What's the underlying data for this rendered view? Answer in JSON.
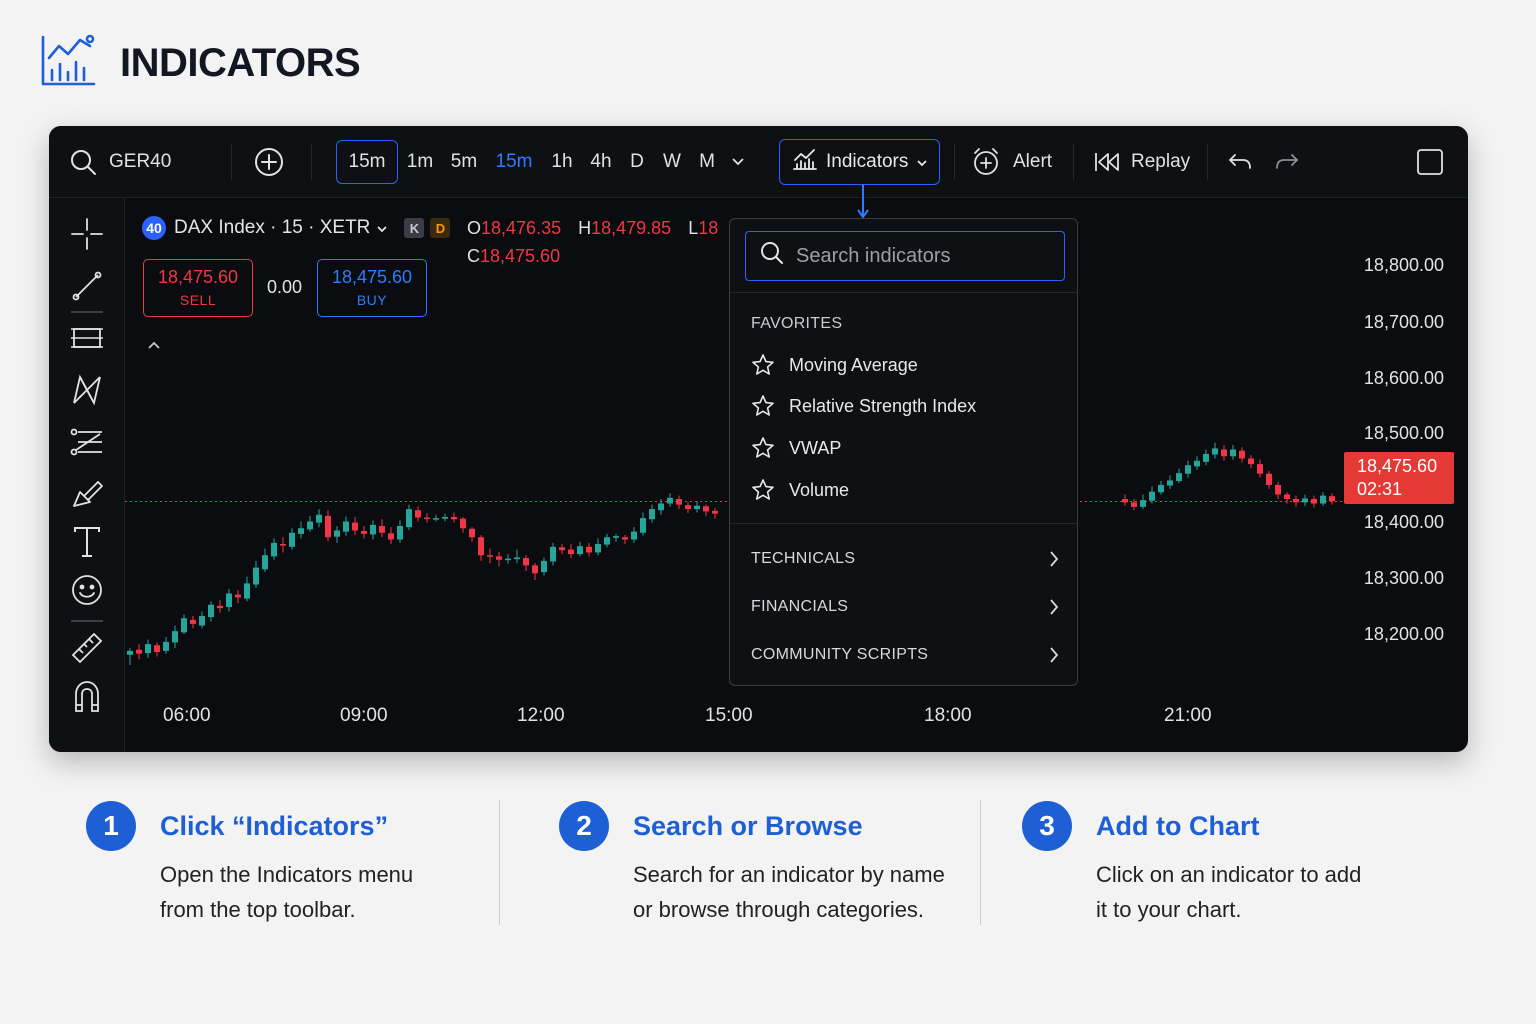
{
  "page": {
    "title": "INDICATORS"
  },
  "toolbar": {
    "symbol": "GER40",
    "timeframes": [
      {
        "label": "15m",
        "style": "boxed"
      },
      {
        "label": "1m",
        "style": "plain"
      },
      {
        "label": "5m",
        "style": "plain"
      },
      {
        "label": "15m",
        "style": "blue"
      },
      {
        "label": "1h",
        "style": "plain"
      },
      {
        "label": "4h",
        "style": "plain"
      },
      {
        "label": "D",
        "style": "plain"
      },
      {
        "label": "W",
        "style": "plain"
      },
      {
        "label": "M",
        "style": "plain"
      }
    ],
    "indicators_label": "Indicators",
    "alert_label": "Alert",
    "replay_label": "Replay"
  },
  "legend": {
    "badge": "40",
    "title": "DAX Index · 15 · XETR",
    "badge_k": "K",
    "badge_d": "D",
    "open_key": "O",
    "open": "18,476.35",
    "high_key": "H",
    "high": "18,479.85",
    "low_key": "L",
    "low": "18",
    "close_key": "C",
    "close": "18,475.60"
  },
  "trade": {
    "sell_price": "18,475.60",
    "sell_label": "SELL",
    "spread": "0.00",
    "buy_price": "18,475.60",
    "buy_label": "BUY"
  },
  "price_axis": {
    "labels": [
      "18,800.00",
      "18,700.00",
      "18,600.00",
      "18,500.00",
      "18,400.00",
      "18,300.00",
      "18,200.00"
    ],
    "current_price": "18,475.60",
    "countdown": "02:31"
  },
  "time_axis": {
    "labels": [
      "06:00",
      "09:00",
      "12:00",
      "15:00",
      "18:00",
      "21:00"
    ]
  },
  "dropdown": {
    "search_placeholder": "Search indicators",
    "favorites_heading": "FAVORITES",
    "favorites": [
      "Moving Average",
      "Relative Strength Index",
      "VWAP",
      "Volume"
    ],
    "categories": [
      "TECHNICALS",
      "FINANCIALS",
      "COMMUNITY SCRIPTS"
    ]
  },
  "steps": [
    {
      "num": "1",
      "title": "Click “Indicators”",
      "line1": "Open the Indicators menu",
      "line2": "from the top toolbar."
    },
    {
      "num": "2",
      "title": "Search or Browse",
      "line1": "Search for an indicator by name",
      "line2": "or browse through categories."
    },
    {
      "num": "3",
      "title": "Add to Chart",
      "line1": "Click on an indicator to add",
      "line2": "it to your chart."
    }
  ],
  "colors": {
    "accent": "#2962ff",
    "up": "#26a69a",
    "down": "#f23645",
    "step_blue": "#1f5fd6"
  },
  "chart_data": {
    "type": "candlestick",
    "x": [
      "06:00",
      "09:00",
      "12:00",
      "15:00",
      "18:00",
      "21:00"
    ],
    "ylim": [
      18150,
      18850
    ],
    "current_price": 18475.6,
    "candles": [
      [
        18203,
        18210,
        18185,
        18215
      ],
      [
        18212,
        18205,
        18195,
        18222
      ],
      [
        18206,
        18222,
        18198,
        18230
      ],
      [
        18220,
        18208,
        18200,
        18225
      ],
      [
        18210,
        18226,
        18205,
        18235
      ],
      [
        18225,
        18245,
        18215,
        18255
      ],
      [
        18243,
        18268,
        18240,
        18275
      ],
      [
        18265,
        18258,
        18250,
        18272
      ],
      [
        18255,
        18272,
        18250,
        18280
      ],
      [
        18270,
        18292,
        18262,
        18298
      ],
      [
        18290,
        18286,
        18278,
        18300
      ],
      [
        18288,
        18312,
        18280,
        18320
      ],
      [
        18310,
        18305,
        18295,
        18318
      ],
      [
        18303,
        18330,
        18298,
        18342
      ],
      [
        18328,
        18358,
        18322,
        18370
      ],
      [
        18355,
        18380,
        18350,
        18392
      ],
      [
        18378,
        18402,
        18372,
        18410
      ],
      [
        18400,
        18398,
        18385,
        18412
      ],
      [
        18395,
        18420,
        18390,
        18428
      ],
      [
        18418,
        18428,
        18410,
        18440
      ],
      [
        18426,
        18440,
        18422,
        18450
      ],
      [
        18438,
        18452,
        18430,
        18462
      ],
      [
        18450,
        18412,
        18405,
        18460
      ],
      [
        18413,
        18424,
        18402,
        18432
      ],
      [
        18422,
        18440,
        18415,
        18449
      ],
      [
        18438,
        18424,
        18416,
        18448
      ],
      [
        18423,
        18418,
        18410,
        18432
      ],
      [
        18417,
        18434,
        18408,
        18442
      ],
      [
        18432,
        18420,
        18412,
        18444
      ],
      [
        18419,
        18408,
        18400,
        18430
      ],
      [
        18408,
        18432,
        18402,
        18442
      ],
      [
        18430,
        18462,
        18425,
        18470
      ],
      [
        18460,
        18447,
        18440,
        18467
      ],
      [
        18447,
        18445,
        18438,
        18455
      ],
      [
        18445,
        18446,
        18440,
        18452
      ],
      [
        18445,
        18448,
        18440,
        18454
      ],
      [
        18448,
        18444,
        18438,
        18456
      ],
      [
        18445,
        18428,
        18420,
        18448
      ],
      [
        18427,
        18412,
        18404,
        18430
      ],
      [
        18412,
        18380,
        18370,
        18416
      ],
      [
        18380,
        18378,
        18366,
        18392
      ],
      [
        18378,
        18372,
        18360,
        18386
      ],
      [
        18372,
        18374,
        18365,
        18382
      ],
      [
        18373,
        18376,
        18366,
        18390
      ],
      [
        18375,
        18362,
        18352,
        18380
      ],
      [
        18362,
        18348,
        18336,
        18366
      ],
      [
        18350,
        18370,
        18344,
        18376
      ],
      [
        18369,
        18395,
        18362,
        18402
      ],
      [
        18394,
        18389,
        18382,
        18400
      ],
      [
        18390,
        18382,
        18375,
        18400
      ],
      [
        18382,
        18396,
        18378,
        18404
      ],
      [
        18395,
        18385,
        18378,
        18402
      ],
      [
        18385,
        18400,
        18380,
        18410
      ],
      [
        18399,
        18412,
        18394,
        18418
      ],
      [
        18411,
        18414,
        18404,
        18418
      ],
      [
        18412,
        18408,
        18400,
        18416
      ],
      [
        18408,
        18422,
        18402,
        18430
      ],
      [
        18420,
        18446,
        18415,
        18456
      ],
      [
        18444,
        18462,
        18438,
        18470
      ],
      [
        18460,
        18472,
        18452,
        18480
      ],
      [
        18472,
        18482,
        18466,
        18490
      ],
      [
        18480,
        18470,
        18462,
        18486
      ],
      [
        18469,
        18462,
        18455,
        18475
      ],
      [
        18462,
        18468,
        18456,
        18476
      ],
      [
        18467,
        18458,
        18450,
        18470
      ],
      [
        18459,
        18454,
        18445,
        18464
      ],
      [
        18480,
        18474,
        18468,
        18488
      ],
      [
        18474,
        18466,
        18460,
        18480
      ],
      [
        18466,
        18478,
        18462,
        18488
      ],
      [
        18477,
        18493,
        18472,
        18502
      ],
      [
        18492,
        18505,
        18488,
        18512
      ],
      [
        18504,
        18513,
        18498,
        18522
      ],
      [
        18512,
        18526,
        18508,
        18534
      ],
      [
        18525,
        18540,
        18518,
        18548
      ],
      [
        18538,
        18548,
        18532,
        18556
      ],
      [
        18546,
        18560,
        18540,
        18568
      ],
      [
        18559,
        18570,
        18552,
        18580
      ],
      [
        18568,
        18556,
        18548,
        18576
      ],
      [
        18556,
        18568,
        18550,
        18576
      ],
      [
        18566,
        18552,
        18545,
        18572
      ],
      [
        18552,
        18542,
        18535,
        18558
      ],
      [
        18542,
        18525,
        18518,
        18550
      ],
      [
        18525,
        18505,
        18498,
        18530
      ],
      [
        18505,
        18488,
        18480,
        18510
      ],
      [
        18488,
        18480,
        18472,
        18492
      ],
      [
        18480,
        18474,
        18466,
        18486
      ],
      [
        18474,
        18481,
        18468,
        18488
      ],
      [
        18480,
        18472,
        18465,
        18486
      ],
      [
        18472,
        18486,
        18468,
        18492
      ],
      [
        18485,
        18476,
        18470,
        18490
      ]
    ]
  }
}
